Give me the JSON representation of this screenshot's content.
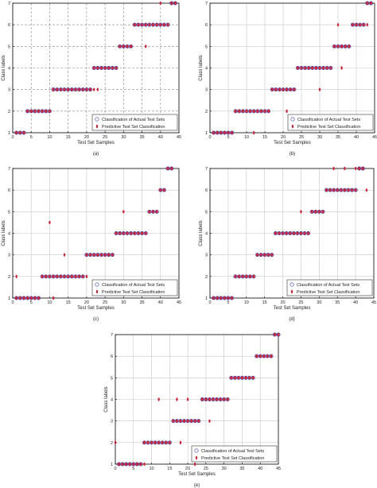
{
  "figure": {
    "legend_actual": "Classification of Actual Test Sets",
    "legend_predicted": "Predictive Test Set Classification",
    "colors": {
      "actual": "#3a3aa8",
      "predicted": "#c8283c",
      "grid_solid": "#c8c8c8",
      "grid_dashed": "#8a8a8a"
    }
  },
  "chart_data": [
    {
      "type": "scatter",
      "caption": "(a)",
      "xlabel": "Test Set Samples",
      "ylabel": "Class labels",
      "xlim": [
        0,
        45
      ],
      "ylim": [
        1,
        7
      ],
      "xticks": [
        "0",
        "5",
        "10",
        "15",
        "20",
        "25",
        "30",
        "35",
        "40",
        "45"
      ],
      "yticks": [
        "1",
        "2",
        "3",
        "4",
        "5",
        "6",
        "7"
      ],
      "grid": "on-dashed",
      "legend_position": "lower-right",
      "series": [
        {
          "y": [
            1,
            1,
            1,
            2,
            2,
            2,
            2,
            2,
            2,
            2,
            3,
            3,
            3,
            3,
            3,
            3,
            3,
            3,
            3,
            3,
            3,
            4,
            4,
            4,
            4,
            4,
            4,
            4,
            5,
            5,
            5,
            5,
            6,
            6,
            6,
            6,
            6,
            6,
            6,
            6,
            6,
            6,
            7,
            7
          ]
        },
        {
          "y": [
            1,
            1,
            1,
            2,
            2,
            2,
            2,
            2,
            2,
            2,
            3,
            3,
            3,
            3,
            3,
            3,
            3,
            3,
            3,
            3,
            3,
            4,
            4,
            4,
            4,
            4,
            4,
            4,
            5,
            5,
            5,
            5,
            6,
            6,
            6,
            6,
            6,
            6,
            6,
            6,
            6,
            6,
            7,
            7
          ]
        }
      ],
      "predicted_extra": [
        [
          20,
          3
        ],
        [
          22,
          3
        ],
        [
          23,
          3
        ],
        [
          34,
          6
        ],
        [
          36,
          5
        ],
        [
          40,
          7
        ]
      ]
    },
    {
      "type": "scatter",
      "caption": "(b)",
      "xlabel": "Test Set Samples",
      "ylabel": "Class labels",
      "xlim": [
        0,
        45
      ],
      "ylim": [
        1,
        7
      ],
      "xticks": [
        "0",
        "5",
        "10",
        "15",
        "20",
        "25",
        "30",
        "35",
        "40",
        "45"
      ],
      "yticks": [
        "1",
        "2",
        "3",
        "4",
        "5",
        "6",
        "7"
      ],
      "grid": "on",
      "legend_position": "lower-right",
      "series": [
        {
          "y": [
            1,
            1,
            1,
            1,
            1,
            1,
            2,
            2,
            2,
            2,
            2,
            2,
            2,
            2,
            2,
            2,
            3,
            3,
            3,
            3,
            3,
            3,
            3,
            4,
            4,
            4,
            4,
            4,
            4,
            4,
            4,
            4,
            4,
            5,
            5,
            5,
            5,
            5,
            6,
            6,
            6,
            6,
            7,
            7
          ]
        },
        {
          "y": [
            1,
            1,
            1,
            1,
            1,
            1,
            2,
            2,
            2,
            2,
            2,
            2,
            2,
            2,
            2,
            2,
            3,
            3,
            3,
            3,
            3,
            3,
            3,
            4,
            4,
            4,
            4,
            4,
            4,
            4,
            4,
            4,
            4,
            5,
            5,
            5,
            5,
            5,
            6,
            6,
            6,
            6,
            7,
            7
          ]
        }
      ],
      "predicted_extra": [
        [
          12,
          1
        ],
        [
          21,
          2
        ],
        [
          30,
          3
        ],
        [
          35,
          6
        ],
        [
          36,
          4
        ],
        [
          43,
          6
        ]
      ]
    },
    {
      "type": "scatter",
      "caption": "(c)",
      "xlabel": "Test Set Samples",
      "ylabel": "Class labels",
      "xlim": [
        0,
        45
      ],
      "ylim": [
        1,
        7
      ],
      "xticks": [
        "0",
        "5",
        "10",
        "15",
        "20",
        "25",
        "30",
        "35",
        "40",
        "45"
      ],
      "yticks": [
        "1",
        "2",
        "3",
        "4",
        "5",
        "6",
        "7"
      ],
      "grid": "on",
      "legend_position": "lower-right",
      "series": [
        {
          "y": [
            1,
            1,
            1,
            1,
            1,
            1,
            1,
            2,
            2,
            2,
            2,
            2,
            2,
            2,
            2,
            2,
            2,
            2,
            2,
            3,
            3,
            3,
            3,
            3,
            3,
            3,
            3,
            4,
            4,
            4,
            4,
            4,
            4,
            4,
            4,
            4,
            5,
            5,
            5,
            6,
            6,
            7,
            7
          ]
        },
        {
          "y": [
            1,
            1,
            1,
            1,
            1,
            1,
            1,
            2,
            2,
            2,
            2,
            2,
            2,
            2,
            2,
            2,
            2,
            2,
            2,
            3,
            3,
            3,
            3,
            3,
            3,
            3,
            3,
            4,
            4,
            4,
            4,
            4,
            4,
            4,
            4,
            4,
            5,
            5,
            5,
            6,
            6,
            7,
            7
          ]
        }
      ],
      "predicted_extra": [
        [
          1,
          2
        ],
        [
          10,
          4.5
        ],
        [
          11,
          1
        ],
        [
          14,
          3
        ],
        [
          20,
          2
        ],
        [
          26,
          3
        ],
        [
          30,
          5
        ]
      ]
    },
    {
      "type": "scatter",
      "caption": "(d)",
      "xlabel": "Test Set Samples",
      "ylabel": "Class labels",
      "xlim": [
        0,
        45
      ],
      "ylim": [
        1,
        7
      ],
      "xticks": [
        "0",
        "5",
        "10",
        "15",
        "20",
        "25",
        "30",
        "35",
        "40",
        "45"
      ],
      "yticks": [
        "1",
        "2",
        "3",
        "4",
        "5",
        "6",
        "7"
      ],
      "grid": "on",
      "legend_position": "lower-right",
      "series": [
        {
          "y": [
            1,
            1,
            1,
            1,
            1,
            1,
            2,
            2,
            2,
            2,
            2,
            2,
            3,
            3,
            3,
            3,
            3,
            4,
            4,
            4,
            4,
            4,
            4,
            4,
            4,
            4,
            4,
            5,
            5,
            5,
            5,
            6,
            6,
            6,
            6,
            6,
            6,
            6,
            6,
            6,
            7,
            7
          ]
        },
        {
          "y": [
            1,
            1,
            1,
            1,
            1,
            1,
            2,
            2,
            2,
            2,
            2,
            2,
            3,
            3,
            3,
            3,
            3,
            4,
            4,
            4,
            4,
            4,
            4,
            4,
            4,
            4,
            4,
            5,
            5,
            5,
            5,
            6,
            6,
            6,
            6,
            6,
            6,
            6,
            6,
            6,
            7,
            7
          ]
        }
      ],
      "predicted_extra": [
        [
          12,
          2
        ],
        [
          16,
          3
        ],
        [
          25,
          5
        ],
        [
          34,
          7
        ],
        [
          37,
          7
        ],
        [
          40,
          7
        ],
        [
          43,
          6
        ]
      ]
    },
    {
      "type": "scatter",
      "caption": "(e)",
      "xlabel": "Test Set Samples",
      "ylabel": "Class labels",
      "xlim": [
        0,
        45
      ],
      "ylim": [
        1,
        7
      ],
      "xticks": [
        "0",
        "5",
        "10",
        "15",
        "20",
        "25",
        "30",
        "35",
        "40",
        "45"
      ],
      "yticks": [
        "1",
        "2",
        "3",
        "4",
        "5",
        "6",
        "7"
      ],
      "grid": "on",
      "legend_position": "lower-right",
      "series": [
        {
          "y": [
            1,
            1,
            1,
            1,
            1,
            1,
            1,
            2,
            2,
            2,
            2,
            2,
            2,
            2,
            2,
            3,
            3,
            3,
            3,
            3,
            3,
            3,
            3,
            4,
            4,
            4,
            4,
            4,
            4,
            4,
            4,
            5,
            5,
            5,
            5,
            5,
            5,
            5,
            6,
            6,
            6,
            6,
            6,
            7,
            7
          ]
        },
        {
          "y": [
            1,
            1,
            1,
            1,
            1,
            1,
            1,
            2,
            2,
            2,
            2,
            2,
            2,
            2,
            2,
            3,
            3,
            3,
            3,
            3,
            3,
            3,
            3,
            4,
            4,
            4,
            4,
            4,
            4,
            4,
            4,
            5,
            5,
            5,
            5,
            5,
            5,
            5,
            6,
            6,
            6,
            6,
            6,
            7,
            7
          ]
        }
      ],
      "predicted_extra": [
        [
          0,
          2
        ],
        [
          8,
          1
        ],
        [
          12,
          4
        ],
        [
          17,
          4
        ],
        [
          18,
          2
        ],
        [
          20,
          4
        ],
        [
          22,
          1
        ],
        [
          26,
          3
        ]
      ]
    }
  ]
}
